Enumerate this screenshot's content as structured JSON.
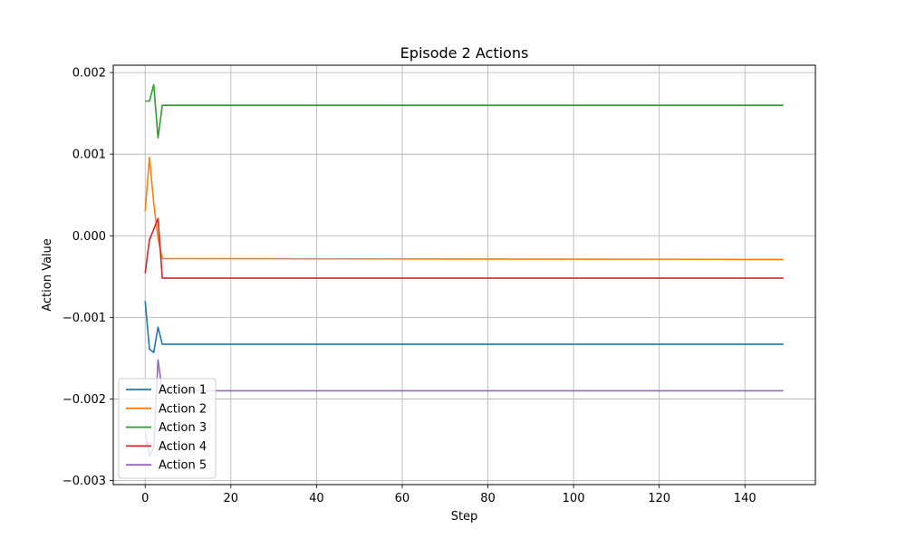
{
  "chart_data": {
    "type": "line",
    "title": "Episode 2 Actions",
    "xlabel": "Step",
    "ylabel": "Action Value",
    "xlim": [
      -7.45,
      156.45
    ],
    "ylim": [
      -0.00305,
      0.00209
    ],
    "xticks": [
      0,
      20,
      40,
      60,
      80,
      100,
      120,
      140
    ],
    "xtick_labels": [
      "0",
      "20",
      "40",
      "60",
      "80",
      "100",
      "120",
      "140"
    ],
    "yticks": [
      -0.003,
      -0.002,
      -0.001,
      0.0,
      0.001,
      0.002
    ],
    "ytick_labels": [
      "−0.003",
      "−0.002",
      "−0.001",
      "0.000",
      "0.001",
      "0.002"
    ],
    "grid": true,
    "legend_position": "lower-left",
    "final_step": 149,
    "series": [
      {
        "name": "Action 1",
        "color": "#1f77b4",
        "x": [
          0,
          1,
          2,
          3,
          4
        ],
        "values": [
          -0.0008,
          -0.00139,
          -0.00143,
          -0.00112,
          -0.00133
        ],
        "steady": -0.00133
      },
      {
        "name": "Action 2",
        "color": "#ff7f0e",
        "x": [
          0,
          1,
          2,
          3,
          4
        ],
        "values": [
          0.0003,
          0.00096,
          0.0004,
          -3e-05,
          -0.00028
        ],
        "steady": -0.00029
      },
      {
        "name": "Action 3",
        "color": "#2ca02c",
        "x": [
          0,
          1,
          2,
          3,
          4
        ],
        "values": [
          0.00165,
          0.00165,
          0.00185,
          0.0012,
          0.0016
        ],
        "steady": 0.0016
      },
      {
        "name": "Action 4",
        "color": "#d62728",
        "x": [
          0,
          1,
          2,
          3,
          4
        ],
        "values": [
          -0.00046,
          -5e-05,
          8e-05,
          0.00021,
          -0.00052
        ],
        "steady": -0.00052
      },
      {
        "name": "Action 5",
        "color": "#9467bd",
        "x": [
          0,
          1,
          2,
          3,
          4
        ],
        "values": [
          -0.0024,
          -0.0027,
          -0.0026,
          -0.00152,
          -0.0019
        ],
        "steady": -0.0019
      }
    ]
  }
}
